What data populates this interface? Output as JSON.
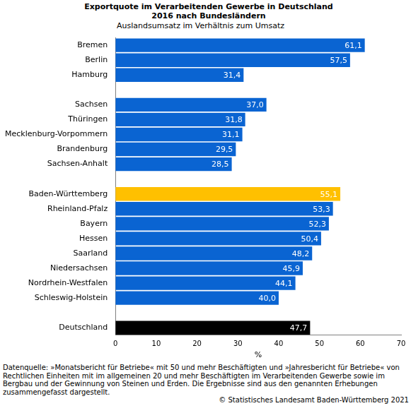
{
  "chart_data": {
    "type": "bar",
    "orientation": "horizontal",
    "title": "Exportquote im Verarbeitenden Gewerbe in Deutschland 2016 nach Bundesländern",
    "subtitle": "Auslandsumsatz im Verhältnis zum Umsatz",
    "x_label": "%",
    "annotations": [
      "Datenquelle: »Monatsbericht für Betriebe« mit 50 und mehr Beschäftigten und »Jahresbericht für Betriebe« von Rechtlichen Einheiten mit im allgemeinen 20 und mehr Beschäftigten im Verarbeitenden Gewerbe sowie im Bergbau und der Gewinnung von Steinen und Erden. Die Ergebnisse sind aus den genannten Erhebungen zusammengefasst dargestellt.",
      "© Statistisches Landesamt Baden-Württemberg 2021"
    ],
    "categories": [
      "Bremen",
      "Berlin",
      "Hamburg",
      null,
      "Sachsen",
      "Thüringen",
      "Mecklenburg-Vorpommern",
      "Brandenburg",
      "Sachsen-Anhalt",
      null,
      "Baden-Württemberg",
      "Rheinland-Pfalz",
      "Bayern",
      "Hessen",
      "Saarland",
      "Niedersachsen",
      "Nordrhein-Westfalen",
      "Schleswig-Holstein",
      null,
      "Deutschland"
    ],
    "values": [
      61.1,
      57.5,
      31.4,
      null,
      37.0,
      31.8,
      31.1,
      29.5,
      28.5,
      null,
      55.1,
      53.3,
      52.3,
      50.4,
      48.2,
      45.9,
      44.1,
      40.0,
      null,
      47.7
    ],
    "value_labels": [
      "61,1",
      "57,5",
      "31,4",
      null,
      "37,0",
      "31,8",
      "31,1",
      "29,5",
      "28,5",
      null,
      "55,1",
      "53,3",
      "52,3",
      "50,4",
      "48,2",
      "45,9",
      "44,1",
      "40,0",
      null,
      "47,7"
    ],
    "colors": [
      "#0a64d2",
      "#0a64d2",
      "#0a64d2",
      null,
      "#0a64d2",
      "#0a64d2",
      "#0a64d2",
      "#0a64d2",
      "#0a64d2",
      null,
      "#ffc000",
      "#0a64d2",
      "#0a64d2",
      "#0a64d2",
      "#0a64d2",
      "#0a64d2",
      "#0a64d2",
      "#0a64d2",
      null,
      "#000000"
    ],
    "xlim": [
      0,
      70
    ],
    "xticks": [
      0,
      10,
      20,
      30,
      40,
      50,
      60,
      70
    ],
    "grid": false,
    "data_labels": true
  }
}
